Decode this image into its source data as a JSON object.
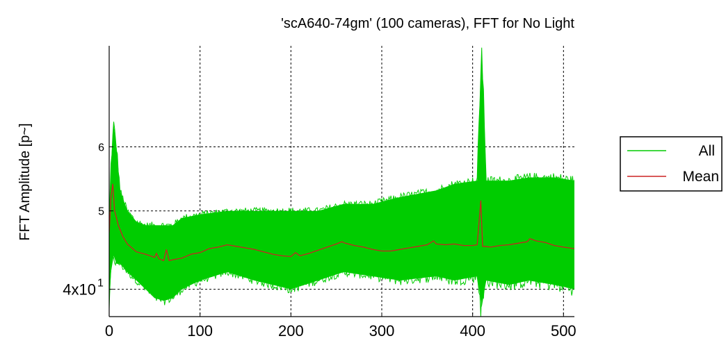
{
  "chart_data": {
    "type": "line",
    "title": "'scA640-74gm' (100 cameras), FFT for No Light",
    "xlabel": "",
    "ylabel": "FFT Amplitude [p~]",
    "xlim": [
      0,
      512
    ],
    "ylim": [
      37,
      80
    ],
    "yscale": "log",
    "grid": true,
    "legend_position": "right",
    "xticks": [
      0,
      100,
      200,
      300,
      400,
      500
    ],
    "xtick_labels": [
      "0",
      "100",
      "200",
      "300",
      "400",
      "500"
    ],
    "yticks": [
      40,
      50,
      60
    ],
    "ytick_labels": [
      "4x10",
      "5",
      "6"
    ],
    "ytick_exponent": "1",
    "series": [
      {
        "name": "All",
        "color": "#00cc00",
        "band": true,
        "x": [
          0,
          2,
          5,
          8,
          12,
          20,
          30,
          40,
          50,
          60,
          70,
          80,
          100,
          130,
          160,
          200,
          230,
          258,
          290,
          320,
          360,
          380,
          405,
          410,
          415,
          440,
          462,
          490,
          512
        ],
        "lower": [
          38,
          42,
          44,
          43,
          43,
          42,
          41,
          40,
          39,
          38.7,
          39,
          40,
          41,
          42,
          41,
          40,
          41,
          42,
          41.5,
          41,
          41.5,
          41,
          41.5,
          38,
          41,
          40.5,
          41,
          40.5,
          40
        ],
        "upper": [
          48,
          57,
          64,
          60,
          53,
          50,
          48.5,
          48,
          48,
          48,
          48,
          49,
          49.5,
          50,
          50,
          50,
          50,
          51,
          51,
          52,
          53,
          54,
          54.5,
          79,
          54.5,
          54.5,
          55,
          55,
          54.5
        ]
      },
      {
        "name": "Mean",
        "color": "#cc2222",
        "x": [
          0,
          2,
          4,
          6,
          8,
          10,
          15,
          20,
          30,
          40,
          50,
          52,
          55,
          60,
          63,
          66,
          70,
          80,
          90,
          100,
          110,
          120,
          130,
          140,
          150,
          160,
          170,
          180,
          190,
          200,
          205,
          210,
          220,
          230,
          240,
          250,
          256,
          260,
          270,
          280,
          290,
          300,
          310,
          320,
          330,
          340,
          350,
          357,
          360,
          370,
          380,
          390,
          400,
          405,
          409,
          411,
          413,
          420,
          430,
          440,
          450,
          460,
          463,
          470,
          480,
          490,
          500,
          512
        ],
        "y": [
          47,
          52,
          54,
          50,
          49,
          48,
          46.5,
          45.5,
          44.5,
          44.2,
          43.8,
          44.3,
          43.6,
          43.4,
          44.8,
          43.4,
          43.5,
          43.7,
          44.2,
          44.4,
          44.9,
          45.1,
          45.4,
          45.2,
          45,
          44.8,
          44.5,
          44.2,
          44,
          43.9,
          44.4,
          44,
          44.3,
          44.7,
          45.1,
          45.5,
          45.8,
          45.6,
          45.3,
          45.1,
          44.8,
          44.6,
          44.6,
          44.8,
          45,
          45.2,
          45.4,
          45.9,
          45.5,
          45.4,
          45.5,
          45.3,
          45.3,
          45.4,
          51.5,
          45.2,
          45.2,
          45.1,
          45.3,
          45.4,
          45.6,
          45.8,
          46.2,
          45.9,
          45.7,
          45.3,
          45.1,
          44.9
        ]
      }
    ]
  }
}
